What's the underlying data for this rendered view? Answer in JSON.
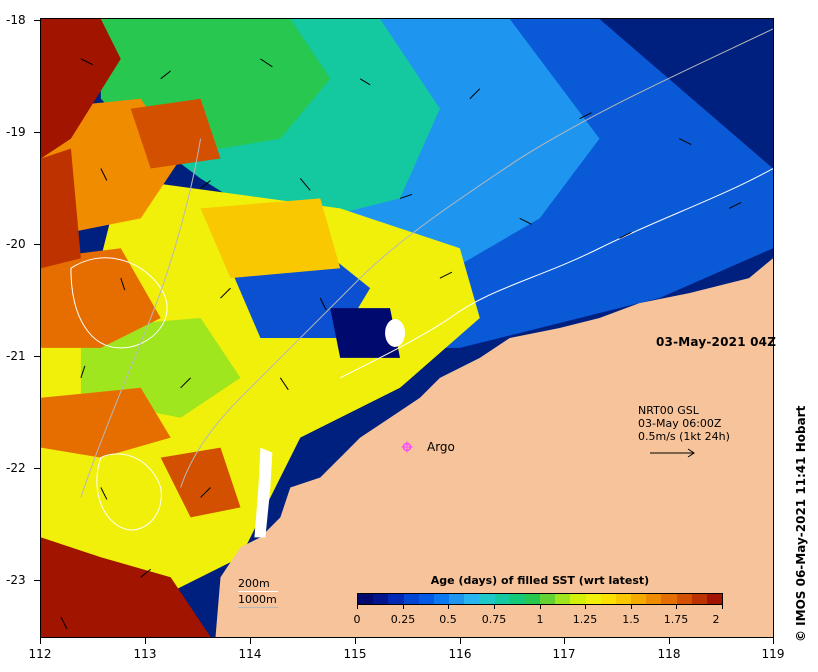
{
  "map": {
    "date_label": "03-May-2021 04Z",
    "credit": "© IMOS 06-May-2021 11:41 Hobart",
    "x_ticks": [
      "112",
      "113",
      "114",
      "115",
      "116",
      "117",
      "118",
      "119"
    ],
    "y_ticks": [
      "-18",
      "-19",
      "-20",
      "-21",
      "-22",
      "-23"
    ],
    "lon_range": [
      112,
      119
    ],
    "lat_range": [
      -18,
      -23.5
    ],
    "argo": {
      "label": "Argo",
      "marker_color": "#ff44ff",
      "lon": 115.45,
      "lat": -21.85
    },
    "current_legend": {
      "line1": "NRT00 GSL",
      "line2": "03-May 06:00Z",
      "line3": "0.5m/s (1kt 24h)"
    },
    "depth_legend": {
      "shallow": "200m",
      "deep": "1000m"
    },
    "land_color": "#f6c39a"
  },
  "colorbar": {
    "title": "Age (days) of filled SST (wrt latest)",
    "ticks": [
      "0",
      "0.25",
      "0.5",
      "0.75",
      "1",
      "1.25",
      "1.5",
      "1.75",
      "2"
    ],
    "range": [
      0,
      2
    ],
    "colors": [
      "#000a6e",
      "#00148c",
      "#0028b4",
      "#0046d2",
      "#005ae6",
      "#0a78f0",
      "#1e96f0",
      "#28b4f0",
      "#1ec8c8",
      "#14c8a0",
      "#14c878",
      "#28c850",
      "#64d232",
      "#a0e61e",
      "#d2f00a",
      "#f0f00a",
      "#fae100",
      "#fac800",
      "#f5aa00",
      "#f08c00",
      "#e66e00",
      "#d25000",
      "#be3200",
      "#a01400"
    ]
  }
}
